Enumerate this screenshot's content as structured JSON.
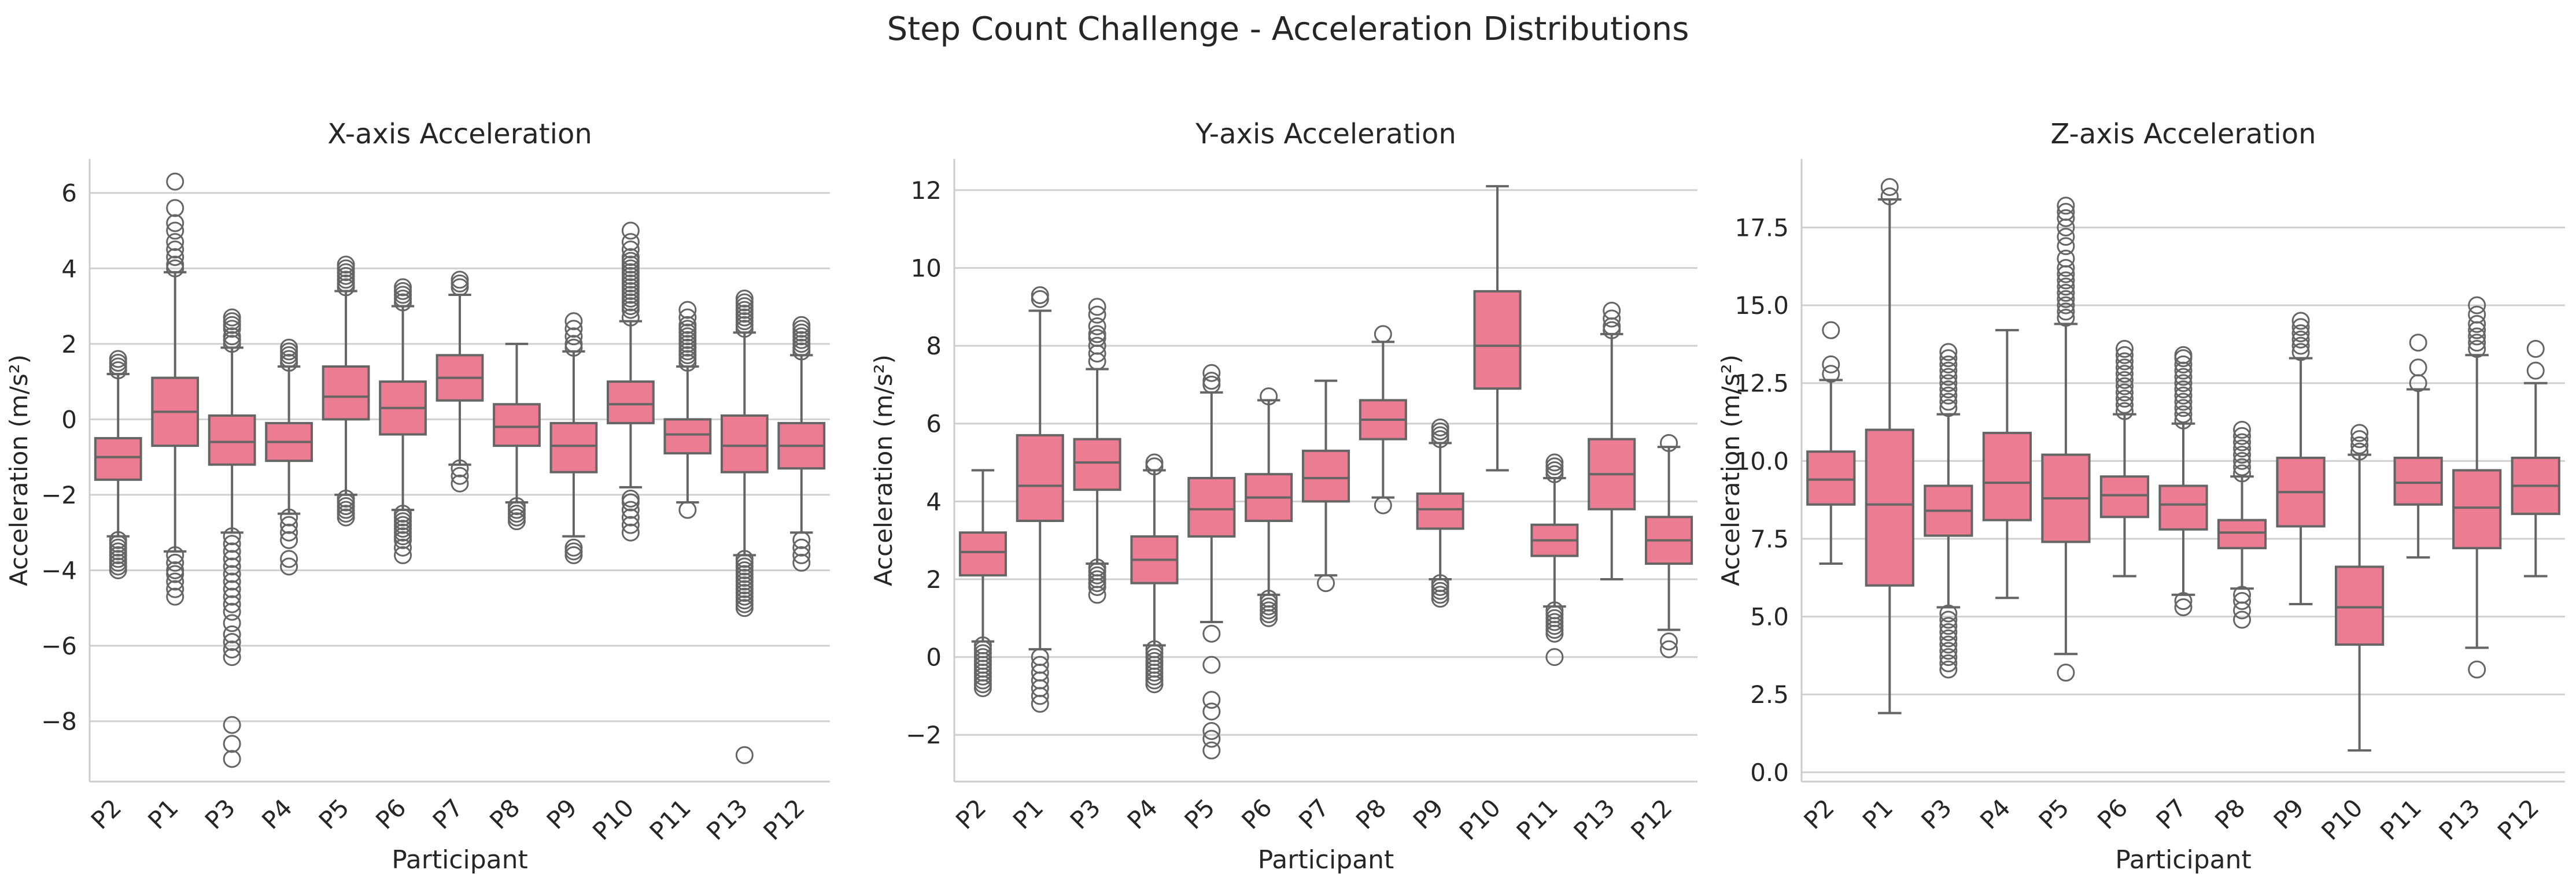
{
  "title": "Step Count Challenge - Acceleration Distributions",
  "colors": {
    "box_fill": "#EB7C91",
    "box_edge": "#656565",
    "grid": "#d0d0d0",
    "spine": "#cccccc"
  },
  "chart_data": [
    {
      "type": "box",
      "title": "X-axis Acceleration",
      "xlabel": "Participant",
      "ylabel": "Acceleration (m/s²)",
      "ylim": [
        -9.6,
        6.9
      ],
      "yticks": [
        -8,
        -6,
        -4,
        -2,
        0,
        2,
        4,
        6
      ],
      "ytick_labels": [
        "−8",
        "−6",
        "−4",
        "−2",
        "0",
        "2",
        "4",
        "6"
      ],
      "grid": true,
      "categories": [
        "P2",
        "P1",
        "P3",
        "P4",
        "P5",
        "P6",
        "P7",
        "P8",
        "P9",
        "P10",
        "P11",
        "P13",
        "P12"
      ],
      "boxes": [
        {
          "q1": -1.6,
          "median": -1.0,
          "q3": -0.5,
          "whisker_low": -3.1,
          "whisker_high": 1.2,
          "outliers": [
            -3.2,
            -3.3,
            -3.4,
            -3.5,
            -3.6,
            -3.7,
            -3.8,
            -3.9,
            -4.0,
            1.3,
            1.4,
            1.5,
            1.6
          ]
        },
        {
          "q1": -0.7,
          "median": 0.2,
          "q3": 1.1,
          "whisker_low": -3.5,
          "whisker_high": 3.9,
          "outliers": [
            -3.6,
            -3.8,
            -4.0,
            -4.1,
            -4.3,
            -4.5,
            -4.7,
            4.0,
            4.1,
            4.3,
            4.5,
            4.7,
            5.0,
            5.2,
            5.6,
            6.3
          ]
        },
        {
          "q1": -1.2,
          "median": -0.6,
          "q3": 0.1,
          "whisker_low": -3.0,
          "whisker_high": 1.9,
          "outliers": [
            -3.1,
            -3.3,
            -3.5,
            -3.7,
            -3.9,
            -4.1,
            -4.3,
            -4.5,
            -4.7,
            -4.9,
            -5.1,
            -5.4,
            -5.7,
            -5.9,
            -6.1,
            -6.3,
            -8.1,
            -8.6,
            -9.0,
            2.0,
            2.1,
            2.2,
            2.4,
            2.5,
            2.6,
            2.7
          ]
        },
        {
          "q1": -1.1,
          "median": -0.6,
          "q3": -0.1,
          "whisker_low": -2.5,
          "whisker_high": 1.4,
          "outliers": [
            -2.6,
            -2.8,
            -3.0,
            -3.2,
            -3.7,
            -3.9,
            1.5,
            1.6,
            1.7,
            1.8,
            1.9
          ]
        },
        {
          "q1": 0.0,
          "median": 0.6,
          "q3": 1.4,
          "whisker_low": -2.0,
          "whisker_high": 3.4,
          "outliers": [
            -2.1,
            -2.2,
            -2.3,
            -2.4,
            -2.5,
            -2.6,
            3.5,
            3.6,
            3.7,
            3.8,
            3.9,
            4.0,
            4.1
          ]
        },
        {
          "q1": -0.4,
          "median": 0.3,
          "q3": 1.0,
          "whisker_low": -2.4,
          "whisker_high": 3.0,
          "outliers": [
            -2.5,
            -2.6,
            -2.7,
            -2.8,
            -2.9,
            -3.0,
            -3.1,
            -3.2,
            -3.4,
            -3.6,
            3.1,
            3.2,
            3.3,
            3.4,
            3.5
          ]
        },
        {
          "q1": 0.5,
          "median": 1.1,
          "q3": 1.7,
          "whisker_low": -1.2,
          "whisker_high": 3.3,
          "outliers": [
            -1.3,
            -1.5,
            -1.7,
            3.5,
            3.6,
            3.7
          ]
        },
        {
          "q1": -0.7,
          "median": -0.2,
          "q3": 0.4,
          "whisker_low": -2.2,
          "whisker_high": 2.0,
          "outliers": [
            -2.3,
            -2.4,
            -2.5,
            -2.6,
            -2.7
          ]
        },
        {
          "q1": -1.4,
          "median": -0.7,
          "q3": -0.1,
          "whisker_low": -3.1,
          "whisker_high": 1.8,
          "outliers": [
            -3.4,
            -3.5,
            -3.6,
            1.9,
            2.0,
            2.2,
            2.4,
            2.6
          ]
        },
        {
          "q1": -0.1,
          "median": 0.4,
          "q3": 1.0,
          "whisker_low": -1.8,
          "whisker_high": 2.6,
          "outliers": [
            -2.1,
            -2.2,
            -2.4,
            -2.6,
            -2.8,
            -3.0,
            2.7,
            2.9,
            3.0,
            3.1,
            3.2,
            3.3,
            3.4,
            3.5,
            3.6,
            3.7,
            3.8,
            3.9,
            4.0,
            4.1,
            4.2,
            4.3,
            4.5,
            4.7,
            5.0
          ]
        },
        {
          "q1": -0.9,
          "median": -0.4,
          "q3": 0.0,
          "whisker_low": -2.2,
          "whisker_high": 1.4,
          "outliers": [
            -2.4,
            1.5,
            1.6,
            1.7,
            1.8,
            1.9,
            2.0,
            2.1,
            2.2,
            2.3,
            2.4,
            2.5,
            2.7,
            2.9
          ]
        },
        {
          "q1": -1.4,
          "median": -0.7,
          "q3": 0.1,
          "whisker_low": -3.6,
          "whisker_high": 2.3,
          "outliers": [
            -3.7,
            -3.8,
            -3.9,
            -4.0,
            -4.1,
            -4.2,
            -4.3,
            -4.4,
            -4.5,
            -4.6,
            -4.7,
            -4.8,
            -4.9,
            -5.0,
            -8.9,
            2.4,
            2.5,
            2.6,
            2.7,
            2.8,
            2.9,
            3.0,
            3.1,
            3.2
          ]
        },
        {
          "q1": -1.3,
          "median": -0.7,
          "q3": -0.1,
          "whisker_low": -3.0,
          "whisker_high": 1.7,
          "outliers": [
            -3.2,
            -3.4,
            -3.6,
            -3.8,
            1.8,
            1.9,
            2.0,
            2.1,
            2.2,
            2.3,
            2.4,
            2.5
          ]
        }
      ]
    },
    {
      "type": "box",
      "title": "Y-axis Acceleration",
      "xlabel": "Participant",
      "ylabel": "Acceleration (m/s²)",
      "ylim": [
        -3.2,
        12.8
      ],
      "yticks": [
        -2,
        0,
        2,
        4,
        6,
        8,
        10,
        12
      ],
      "ytick_labels": [
        "−2",
        "0",
        "2",
        "4",
        "6",
        "8",
        "10",
        "12"
      ],
      "grid": true,
      "categories": [
        "P2",
        "P1",
        "P3",
        "P4",
        "P5",
        "P6",
        "P7",
        "P8",
        "P9",
        "P10",
        "P11",
        "P13",
        "P12"
      ],
      "boxes": [
        {
          "q1": 2.1,
          "median": 2.7,
          "q3": 3.2,
          "whisker_low": 0.4,
          "whisker_high": 4.8,
          "outliers": [
            0.3,
            0.2,
            0.1,
            0.0,
            -0.1,
            -0.2,
            -0.3,
            -0.4,
            -0.5,
            -0.6,
            -0.7,
            -0.8
          ]
        },
        {
          "q1": 3.5,
          "median": 4.4,
          "q3": 5.7,
          "whisker_low": 0.2,
          "whisker_high": 8.9,
          "outliers": [
            0.0,
            -0.2,
            -0.4,
            -0.6,
            -0.8,
            -1.0,
            -1.2,
            9.2,
            9.3
          ]
        },
        {
          "q1": 4.3,
          "median": 5.0,
          "q3": 5.6,
          "whisker_low": 2.4,
          "whisker_high": 7.4,
          "outliers": [
            2.3,
            2.2,
            2.1,
            2.0,
            1.9,
            1.8,
            1.6,
            7.6,
            7.8,
            8.0,
            8.2,
            8.3,
            8.5,
            8.8,
            9.0
          ]
        },
        {
          "q1": 1.9,
          "median": 2.5,
          "q3": 3.1,
          "whisker_low": 0.3,
          "whisker_high": 4.8,
          "outliers": [
            0.2,
            0.1,
            0.0,
            -0.1,
            -0.2,
            -0.3,
            -0.4,
            -0.5,
            -0.6,
            -0.7,
            4.9,
            5.0
          ]
        },
        {
          "q1": 3.1,
          "median": 3.8,
          "q3": 4.6,
          "whisker_low": 0.9,
          "whisker_high": 6.8,
          "outliers": [
            0.6,
            -0.2,
            -1.1,
            -1.4,
            -1.9,
            -2.1,
            -2.4,
            7.0,
            7.1,
            7.3
          ]
        },
        {
          "q1": 3.5,
          "median": 4.1,
          "q3": 4.7,
          "whisker_low": 1.6,
          "whisker_high": 6.6,
          "outliers": [
            1.5,
            1.4,
            1.3,
            1.2,
            1.1,
            1.0,
            6.7
          ]
        },
        {
          "q1": 4.0,
          "median": 4.6,
          "q3": 5.3,
          "whisker_low": 2.1,
          "whisker_high": 7.1,
          "outliers": [
            1.9
          ]
        },
        {
          "q1": 5.6,
          "median": 6.1,
          "q3": 6.6,
          "whisker_low": 4.1,
          "whisker_high": 8.1,
          "outliers": [
            3.9,
            8.3
          ]
        },
        {
          "q1": 3.3,
          "median": 3.8,
          "q3": 4.2,
          "whisker_low": 2.0,
          "whisker_high": 5.5,
          "outliers": [
            1.9,
            1.8,
            1.7,
            1.6,
            1.5,
            5.6,
            5.7,
            5.8,
            5.9
          ]
        },
        {
          "q1": 6.9,
          "median": 8.0,
          "q3": 9.4,
          "whisker_low": 4.8,
          "whisker_high": 12.1,
          "outliers": []
        },
        {
          "q1": 2.6,
          "median": 3.0,
          "q3": 3.4,
          "whisker_low": 1.3,
          "whisker_high": 4.6,
          "outliers": [
            1.2,
            1.1,
            1.0,
            0.9,
            0.8,
            0.7,
            0.6,
            0.0,
            4.7,
            4.8,
            4.9,
            5.0
          ]
        },
        {
          "q1": 3.8,
          "median": 4.7,
          "q3": 5.6,
          "whisker_low": 2.0,
          "whisker_high": 8.3,
          "outliers": [
            8.4,
            8.5,
            8.7,
            8.9
          ]
        },
        {
          "q1": 2.4,
          "median": 3.0,
          "q3": 3.6,
          "whisker_low": 0.7,
          "whisker_high": 5.4,
          "outliers": [
            0.4,
            0.2,
            5.5
          ]
        }
      ]
    },
    {
      "type": "box",
      "title": "Z-axis Acceleration",
      "xlabel": "Participant",
      "ylabel": "Acceleration (m/s²)",
      "ylim": [
        -0.3,
        19.7
      ],
      "yticks": [
        0.0,
        2.5,
        5.0,
        7.5,
        10.0,
        12.5,
        15.0,
        17.5
      ],
      "ytick_labels": [
        "0.0",
        "2.5",
        "5.0",
        "7.5",
        "10.0",
        "12.5",
        "15.0",
        "17.5"
      ],
      "grid": true,
      "categories": [
        "P2",
        "P1",
        "P3",
        "P4",
        "P5",
        "P6",
        "P7",
        "P8",
        "P9",
        "P10",
        "P11",
        "P13",
        "P12"
      ],
      "boxes": [
        {
          "q1": 8.6,
          "median": 9.4,
          "q3": 10.3,
          "whisker_low": 6.7,
          "whisker_high": 12.6,
          "outliers": [
            12.8,
            13.1,
            14.2
          ]
        },
        {
          "q1": 6.0,
          "median": 8.6,
          "q3": 11.0,
          "whisker_low": 1.9,
          "whisker_high": 18.4,
          "outliers": [
            18.5,
            18.8
          ]
        },
        {
          "q1": 7.6,
          "median": 8.4,
          "q3": 9.2,
          "whisker_low": 5.3,
          "whisker_high": 11.5,
          "outliers": [
            5.1,
            4.9,
            4.7,
            4.5,
            4.3,
            4.1,
            3.9,
            3.7,
            3.5,
            3.3,
            11.7,
            11.9,
            12.1,
            12.3,
            12.5,
            12.7,
            12.9,
            13.1,
            13.3,
            13.5
          ]
        },
        {
          "q1": 8.1,
          "median": 9.3,
          "q3": 10.9,
          "whisker_low": 5.6,
          "whisker_high": 14.2,
          "outliers": []
        },
        {
          "q1": 7.4,
          "median": 8.8,
          "q3": 10.2,
          "whisker_low": 3.8,
          "whisker_high": 14.4,
          "outliers": [
            3.2,
            14.6,
            14.8,
            15.0,
            15.2,
            15.4,
            15.6,
            15.8,
            16.0,
            16.2,
            16.5,
            16.9,
            17.2,
            17.5,
            17.8,
            18.0,
            18.2
          ]
        },
        {
          "q1": 8.2,
          "median": 8.9,
          "q3": 9.5,
          "whisker_low": 6.3,
          "whisker_high": 11.5,
          "outliers": [
            11.6,
            11.8,
            12.0,
            12.2,
            12.4,
            12.6,
            12.8,
            13.0,
            13.2,
            13.4,
            13.6
          ]
        },
        {
          "q1": 7.8,
          "median": 8.6,
          "q3": 9.2,
          "whisker_low": 5.7,
          "whisker_high": 11.2,
          "outliers": [
            5.5,
            5.3,
            11.3,
            11.5,
            11.7,
            11.9,
            12.1,
            12.3,
            12.5,
            12.7,
            12.9,
            13.1,
            13.3,
            13.4
          ]
        },
        {
          "q1": 7.2,
          "median": 7.7,
          "q3": 8.1,
          "whisker_low": 5.9,
          "whisker_high": 9.5,
          "outliers": [
            5.7,
            5.5,
            5.2,
            4.9,
            9.6,
            9.8,
            10.0,
            10.2,
            10.4,
            10.6,
            10.8,
            11.0
          ]
        },
        {
          "q1": 7.9,
          "median": 9.0,
          "q3": 10.1,
          "whisker_low": 5.4,
          "whisker_high": 13.3,
          "outliers": [
            13.5,
            13.7,
            13.9,
            14.1,
            14.3,
            14.5
          ]
        },
        {
          "q1": 4.1,
          "median": 5.3,
          "q3": 6.6,
          "whisker_low": 0.7,
          "whisker_high": 10.2,
          "outliers": [
            10.3,
            10.5,
            10.7,
            10.9
          ]
        },
        {
          "q1": 8.6,
          "median": 9.3,
          "q3": 10.1,
          "whisker_low": 6.9,
          "whisker_high": 12.3,
          "outliers": [
            12.5,
            13.0,
            13.8
          ]
        },
        {
          "q1": 7.2,
          "median": 8.5,
          "q3": 9.7,
          "whisker_low": 4.0,
          "whisker_high": 13.4,
          "outliers": [
            3.3,
            13.6,
            13.8,
            14.0,
            14.2,
            14.4,
            14.7,
            15.0
          ]
        },
        {
          "q1": 8.3,
          "median": 9.2,
          "q3": 10.1,
          "whisker_low": 6.3,
          "whisker_high": 12.5,
          "outliers": [
            12.9,
            13.6
          ]
        }
      ]
    }
  ]
}
